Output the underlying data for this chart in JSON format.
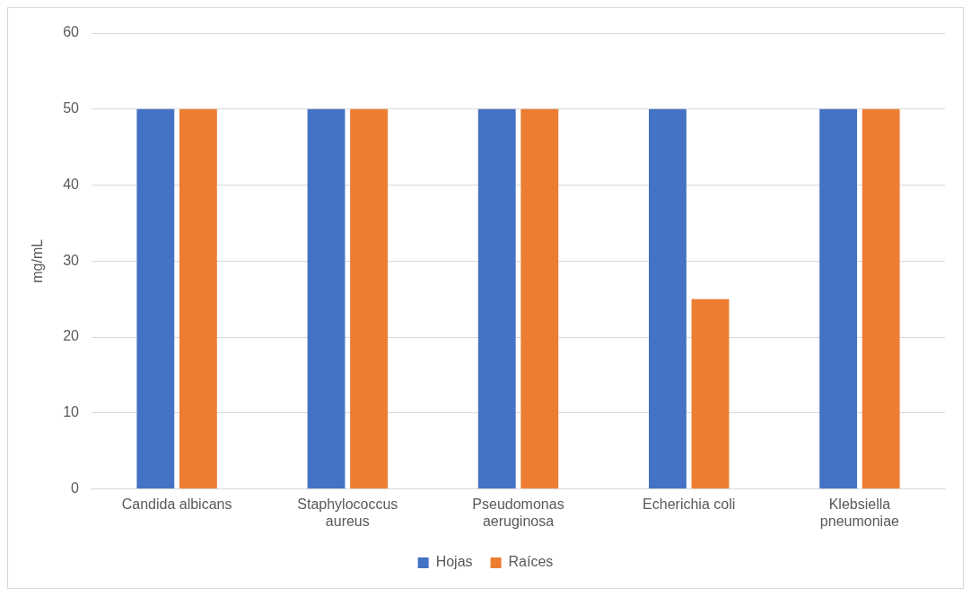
{
  "chart_data": {
    "type": "bar",
    "ylabel": "mg/mL",
    "categories": [
      "Candida albicans",
      "Staphylococcus aureus",
      "Pseudomonas aeruginosa",
      "Echerichia coli",
      "Klebsiella pneumoniae"
    ],
    "series": [
      {
        "name": "Hojas",
        "color": "#4472c4",
        "values": [
          50,
          50,
          50,
          50,
          50
        ]
      },
      {
        "name": "Raíces",
        "color": "#ed7d31",
        "values": [
          50,
          50,
          50,
          25,
          50
        ]
      }
    ],
    "ylim": [
      0,
      60
    ],
    "yticks": [
      0,
      10,
      20,
      30,
      40,
      50,
      60
    ],
    "grid": "y",
    "legend": "bottom"
  }
}
